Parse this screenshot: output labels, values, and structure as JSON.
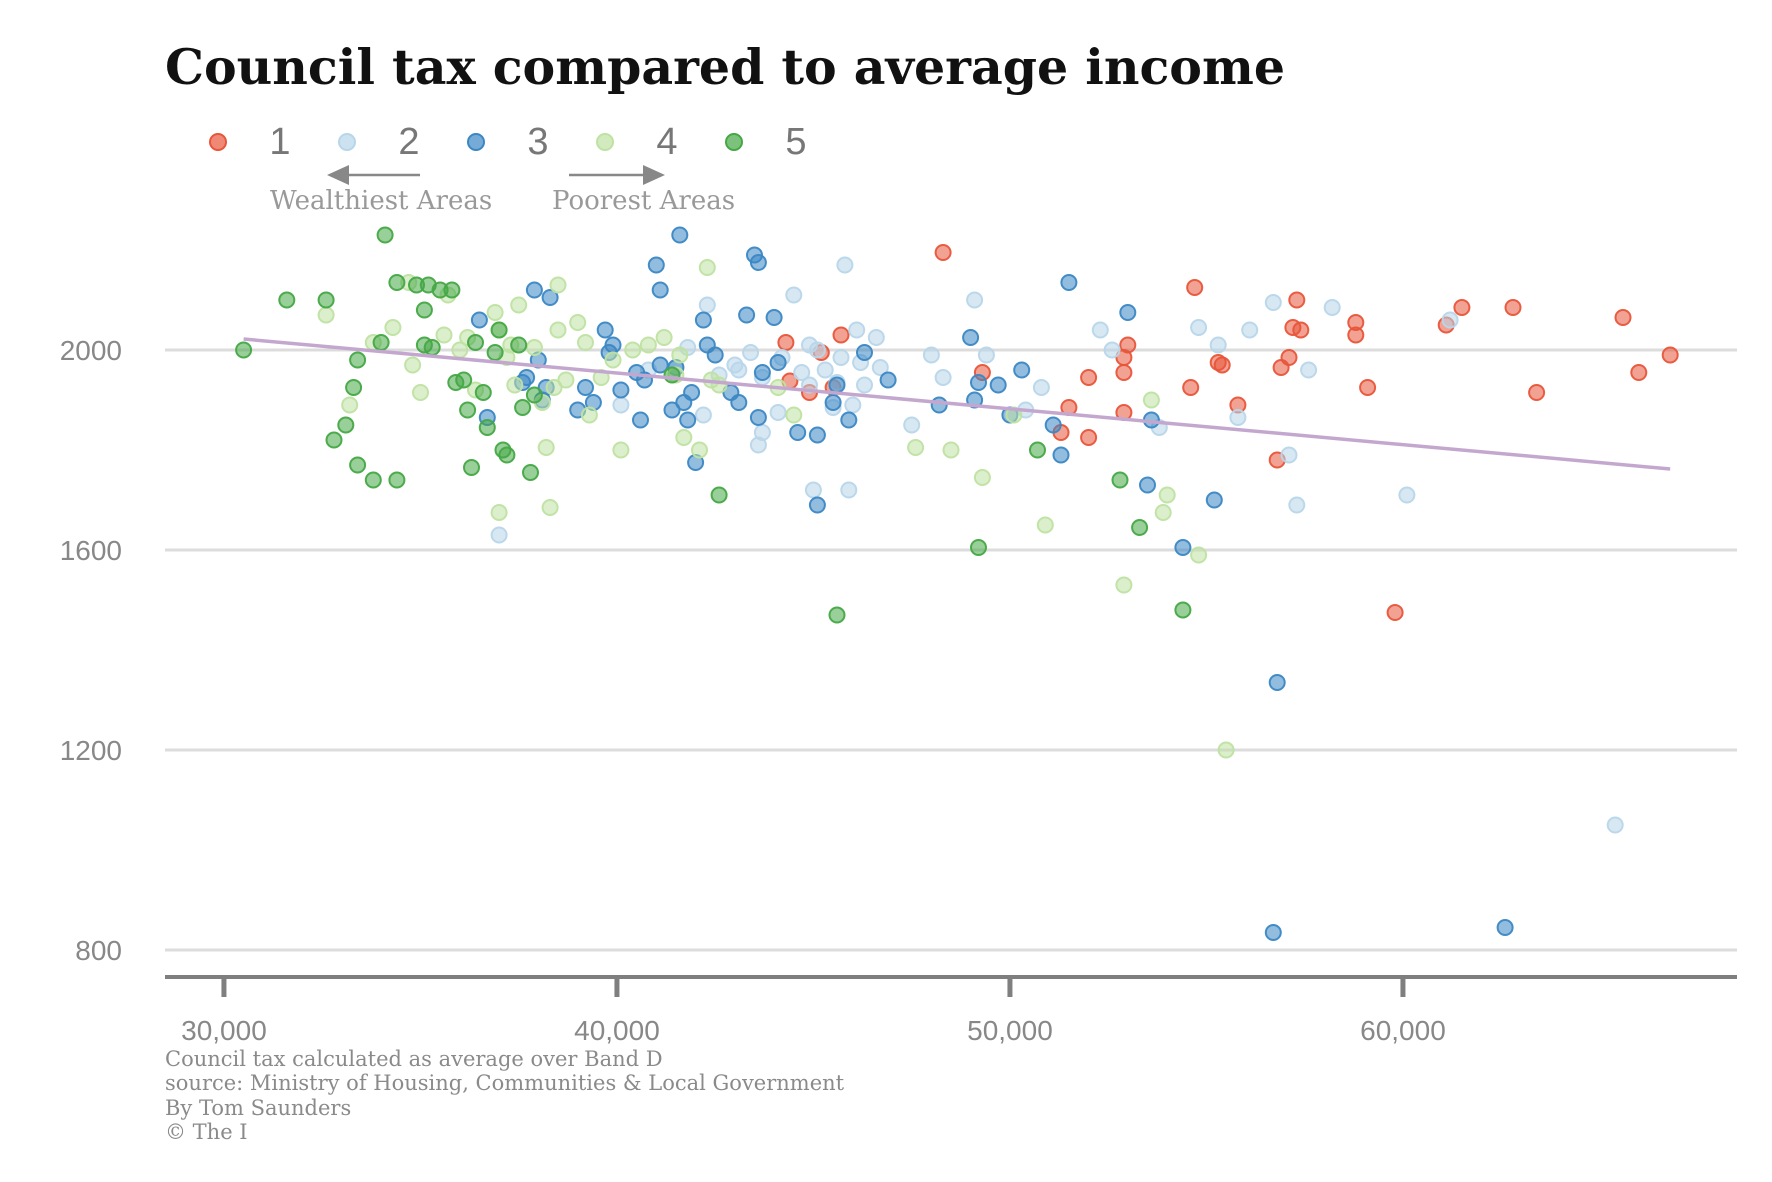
{
  "chart_data": {
    "type": "scatter",
    "title": "Council tax compared to average income",
    "xlabel": "",
    "ylabel": "",
    "xlim": [
      28500,
      68500
    ],
    "ylim": [
      750,
      2300
    ],
    "xticks": [
      30000,
      40000,
      50000,
      60000
    ],
    "xtick_labels": [
      "30,000",
      "40,000",
      "50,000",
      "60,000"
    ],
    "yticks": [
      800,
      1200,
      1600,
      2000
    ],
    "ytick_labels": [
      "800",
      "1200",
      "1600",
      "2000"
    ],
    "grid": "horizontal",
    "legend_position": "top-left",
    "legend_notes": {
      "left": "Wealthiest Areas",
      "right": "Poorest Areas"
    },
    "trend_line": {
      "x": [
        30500,
        66800
      ],
      "y": [
        2022,
        1762
      ],
      "color": "#c4a7cf"
    },
    "series": [
      {
        "name": "1",
        "color": "#e8553a",
        "points": [
          [
            48300,
            2195
          ],
          [
            54700,
            2125
          ],
          [
            44300,
            2015
          ],
          [
            45200,
            1995
          ],
          [
            45700,
            2030
          ],
          [
            44900,
            1915
          ],
          [
            49300,
            1955
          ],
          [
            51500,
            1885
          ],
          [
            51300,
            1835
          ],
          [
            52000,
            1825
          ],
          [
            52000,
            1945
          ],
          [
            52900,
            1985
          ],
          [
            53000,
            2010
          ],
          [
            52900,
            1955
          ],
          [
            52900,
            1875
          ],
          [
            54600,
            1925
          ],
          [
            55300,
            1975
          ],
          [
            55400,
            1970
          ],
          [
            55800,
            1890
          ],
          [
            56800,
            1780
          ],
          [
            56900,
            1965
          ],
          [
            57100,
            1985
          ],
          [
            57200,
            2045
          ],
          [
            57300,
            2100
          ],
          [
            57400,
            2040
          ],
          [
            58800,
            2055
          ],
          [
            58800,
            2030
          ],
          [
            59100,
            1925
          ],
          [
            59800,
            1475
          ],
          [
            61100,
            2050
          ],
          [
            61500,
            2085
          ],
          [
            62800,
            2085
          ],
          [
            63400,
            1915
          ],
          [
            65600,
            2065
          ],
          [
            66000,
            1955
          ],
          [
            66800,
            1990
          ],
          [
            44400,
            1938
          ],
          [
            45500,
            1925
          ]
        ]
      },
      {
        "name": "2",
        "color": "#b8d6ea",
        "points": [
          [
            37000,
            1630
          ],
          [
            40100,
            1890
          ],
          [
            40800,
            1960
          ],
          [
            41500,
            1965
          ],
          [
            41800,
            2005
          ],
          [
            42200,
            1870
          ],
          [
            42300,
            2090
          ],
          [
            43000,
            1970
          ],
          [
            43100,
            1960
          ],
          [
            43600,
            1810
          ],
          [
            43700,
            1835
          ],
          [
            43700,
            1945
          ],
          [
            44100,
            1875
          ],
          [
            44500,
            2110
          ],
          [
            44700,
            1955
          ],
          [
            44900,
            1930
          ],
          [
            45000,
            1720
          ],
          [
            45100,
            2000
          ],
          [
            45300,
            1960
          ],
          [
            45500,
            1885
          ],
          [
            45700,
            1985
          ],
          [
            45800,
            2170
          ],
          [
            45900,
            1720
          ],
          [
            46000,
            1890
          ],
          [
            46100,
            2040
          ],
          [
            46300,
            1930
          ],
          [
            46600,
            2025
          ],
          [
            46700,
            1965
          ],
          [
            47500,
            1850
          ],
          [
            48000,
            1990
          ],
          [
            48300,
            1945
          ],
          [
            49100,
            2100
          ],
          [
            49400,
            1990
          ],
          [
            50400,
            1880
          ],
          [
            50800,
            1925
          ],
          [
            52300,
            2040
          ],
          [
            52600,
            2000
          ],
          [
            53800,
            1845
          ],
          [
            54800,
            2045
          ],
          [
            55300,
            2010
          ],
          [
            55800,
            1865
          ],
          [
            56100,
            2040
          ],
          [
            56700,
            2095
          ],
          [
            57100,
            1790
          ],
          [
            57300,
            1690
          ],
          [
            57600,
            1960
          ],
          [
            58200,
            2085
          ],
          [
            60100,
            1710
          ],
          [
            61200,
            2060
          ],
          [
            65400,
            1050
          ],
          [
            43400,
            1995
          ],
          [
            44200,
            1985
          ],
          [
            44900,
            2010
          ],
          [
            45600,
            1935
          ],
          [
            46200,
            1975
          ],
          [
            42600,
            1950
          ]
        ]
      },
      {
        "name": "3",
        "color": "#3b87c4",
        "points": [
          [
            36500,
            2060
          ],
          [
            36700,
            1865
          ],
          [
            37700,
            1945
          ],
          [
            37900,
            2120
          ],
          [
            38300,
            2105
          ],
          [
            37600,
            1935
          ],
          [
            38000,
            1980
          ],
          [
            38100,
            1900
          ],
          [
            38200,
            1925
          ],
          [
            39000,
            1880
          ],
          [
            39200,
            1925
          ],
          [
            39400,
            1895
          ],
          [
            39700,
            2040
          ],
          [
            39800,
            1995
          ],
          [
            39900,
            2010
          ],
          [
            40100,
            1920
          ],
          [
            40500,
            1955
          ],
          [
            40600,
            1860
          ],
          [
            40700,
            1940
          ],
          [
            41000,
            2170
          ],
          [
            41100,
            2120
          ],
          [
            41400,
            1880
          ],
          [
            41500,
            1965
          ],
          [
            41700,
            1895
          ],
          [
            41800,
            1860
          ],
          [
            41900,
            1915
          ],
          [
            42000,
            1775
          ],
          [
            42200,
            2060
          ],
          [
            42300,
            2010
          ],
          [
            42500,
            1990
          ],
          [
            41600,
            2230
          ],
          [
            41100,
            1970
          ],
          [
            42900,
            1915
          ],
          [
            43100,
            1895
          ],
          [
            43300,
            2070
          ],
          [
            43500,
            2190
          ],
          [
            43600,
            2175
          ],
          [
            43600,
            1865
          ],
          [
            43700,
            1955
          ],
          [
            44000,
            2065
          ],
          [
            44100,
            1975
          ],
          [
            44600,
            1835
          ],
          [
            45100,
            1830
          ],
          [
            45100,
            1690
          ],
          [
            45500,
            1895
          ],
          [
            45600,
            1930
          ],
          [
            45900,
            1860
          ],
          [
            46300,
            1995
          ],
          [
            46900,
            1940
          ],
          [
            48200,
            1890
          ],
          [
            49000,
            2025
          ],
          [
            49100,
            1900
          ],
          [
            49200,
            1935
          ],
          [
            49700,
            1930
          ],
          [
            50000,
            1870
          ],
          [
            50300,
            1960
          ],
          [
            51300,
            1790
          ],
          [
            51500,
            2135
          ],
          [
            53000,
            2075
          ],
          [
            53500,
            1730
          ],
          [
            53600,
            1860
          ],
          [
            54400,
            1605
          ],
          [
            55200,
            1700
          ],
          [
            56700,
            835
          ],
          [
            56800,
            1335
          ],
          [
            62600,
            845
          ],
          [
            51100,
            1850
          ]
        ]
      },
      {
        "name": "4",
        "color": "#bfe2a2",
        "points": [
          [
            32600,
            2070
          ],
          [
            33200,
            1890
          ],
          [
            33800,
            2015
          ],
          [
            34300,
            2045
          ],
          [
            34700,
            2135
          ],
          [
            34800,
            1970
          ],
          [
            35000,
            1915
          ],
          [
            35600,
            2030
          ],
          [
            35700,
            2110
          ],
          [
            36200,
            2025
          ],
          [
            36400,
            1920
          ],
          [
            36900,
            2075
          ],
          [
            37000,
            2040
          ],
          [
            37000,
            1675
          ],
          [
            37200,
            1985
          ],
          [
            37300,
            2010
          ],
          [
            37400,
            1930
          ],
          [
            37500,
            2090
          ],
          [
            37900,
            2005
          ],
          [
            38100,
            1895
          ],
          [
            38200,
            1805
          ],
          [
            38300,
            1685
          ],
          [
            38400,
            1925
          ],
          [
            38500,
            2040
          ],
          [
            38700,
            1940
          ],
          [
            39000,
            2055
          ],
          [
            39200,
            2015
          ],
          [
            39300,
            1870
          ],
          [
            39600,
            1945
          ],
          [
            39900,
            1980
          ],
          [
            40100,
            1800
          ],
          [
            40400,
            2000
          ],
          [
            40800,
            2010
          ],
          [
            41200,
            2025
          ],
          [
            41500,
            1950
          ],
          [
            41700,
            1825
          ],
          [
            42100,
            1800
          ],
          [
            42400,
            1940
          ],
          [
            42300,
            2165
          ],
          [
            42600,
            1930
          ],
          [
            44100,
            1925
          ],
          [
            44500,
            1870
          ],
          [
            47600,
            1805
          ],
          [
            48500,
            1800
          ],
          [
            49300,
            1745
          ],
          [
            50100,
            1870
          ],
          [
            50900,
            1650
          ],
          [
            52900,
            1530
          ],
          [
            53600,
            1900
          ],
          [
            53900,
            1675
          ],
          [
            54000,
            1710
          ],
          [
            54800,
            1590
          ],
          [
            55500,
            1200
          ],
          [
            38500,
            2130
          ],
          [
            36000,
            2000
          ],
          [
            41600,
            1990
          ]
        ]
      },
      {
        "name": "5",
        "color": "#45a845",
        "points": [
          [
            30500,
            2000
          ],
          [
            31600,
            2100
          ],
          [
            32600,
            2100
          ],
          [
            32800,
            1820
          ],
          [
            33100,
            1850
          ],
          [
            33300,
            1925
          ],
          [
            33400,
            1980
          ],
          [
            33400,
            1770
          ],
          [
            33800,
            1740
          ],
          [
            34000,
            2015
          ],
          [
            34100,
            2230
          ],
          [
            34400,
            2135
          ],
          [
            34400,
            1740
          ],
          [
            34900,
            2130
          ],
          [
            35100,
            2010
          ],
          [
            35100,
            2080
          ],
          [
            35200,
            2130
          ],
          [
            35300,
            2005
          ],
          [
            35500,
            2120
          ],
          [
            35800,
            2120
          ],
          [
            35900,
            1935
          ],
          [
            36100,
            1940
          ],
          [
            36200,
            1880
          ],
          [
            36300,
            1765
          ],
          [
            36400,
            2015
          ],
          [
            36600,
            1915
          ],
          [
            36700,
            1845
          ],
          [
            36900,
            1995
          ],
          [
            37000,
            2040
          ],
          [
            37100,
            1800
          ],
          [
            37200,
            1790
          ],
          [
            37500,
            2010
          ],
          [
            37600,
            1885
          ],
          [
            37800,
            1755
          ],
          [
            37900,
            1910
          ],
          [
            41400,
            1950
          ],
          [
            42600,
            1710
          ],
          [
            45600,
            1470
          ],
          [
            49200,
            1605
          ],
          [
            50700,
            1800
          ],
          [
            52800,
            1740
          ],
          [
            53300,
            1645
          ],
          [
            54400,
            1480
          ]
        ]
      }
    ]
  },
  "footer": {
    "line1": "Council tax calculated as average over Band D",
    "line2": "source: Ministry of Housing, Communities & Local Government",
    "line3": "By Tom Saunders",
    "line4": "© The I"
  }
}
